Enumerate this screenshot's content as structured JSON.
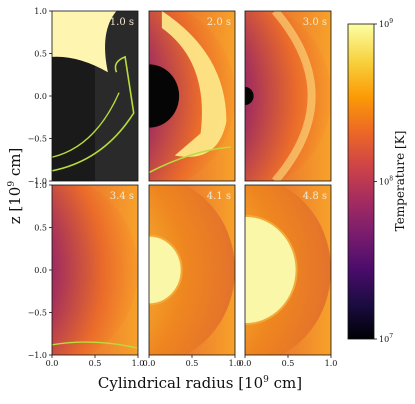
{
  "chart_data": {
    "type": "heatmap",
    "title": "",
    "xlabel": "Cylindrical radius [10$^9$ cm]",
    "ylabel": "z [10$^9$ cm]",
    "xlabel_text": "Cylindrical radius [10",
    "xlabel_sup": "9",
    "xlabel_end": " cm]",
    "ylabel_text": "z [10",
    "ylabel_sup": "9",
    "ylabel_end": " cm]",
    "xlim": [
      0.0,
      1.0
    ],
    "ylim": [
      -1.0,
      1.0
    ],
    "x_ticks": [
      "0.0",
      "0.5",
      "1.0"
    ],
    "y_ticks": [
      "1.0",
      "0.5",
      "0.0",
      "−0.5",
      "−1.0"
    ],
    "panels": [
      {
        "time": "1.0 s",
        "row": 0,
        "col": 0,
        "blob_radius": 0.5
      },
      {
        "time": "2.0 s",
        "row": 0,
        "col": 1,
        "blob_radius": 0.35
      },
      {
        "time": "3.0 s",
        "row": 0,
        "col": 2,
        "blob_radius": 0.1
      },
      {
        "time": "3.4 s",
        "row": 1,
        "col": 0,
        "blob_radius": 0.0
      },
      {
        "time": "4.1 s",
        "row": 1,
        "col": 1,
        "blob_radius": 0.38
      },
      {
        "time": "4.8 s",
        "row": 1,
        "col": 2,
        "blob_radius": 0.6
      }
    ],
    "colorbar": {
      "label": "Temperature [K]",
      "scale": "log",
      "range": [
        10000000,
        1000000000
      ],
      "ticks": [
        {
          "base": "10",
          "exp": "9",
          "value": 1000000000
        },
        {
          "base": "10",
          "exp": "8",
          "value": 100000000
        },
        {
          "base": "10",
          "exp": "7",
          "value": 10000000
        }
      ],
      "colormap": "inferno",
      "colors": [
        "#000004",
        "#1b0c41",
        "#4a0c6b",
        "#781c6d",
        "#a52c60",
        "#cf4446",
        "#ed6925",
        "#fb9b06",
        "#f7d13d",
        "#fcffa4"
      ]
    },
    "grid": false
  }
}
